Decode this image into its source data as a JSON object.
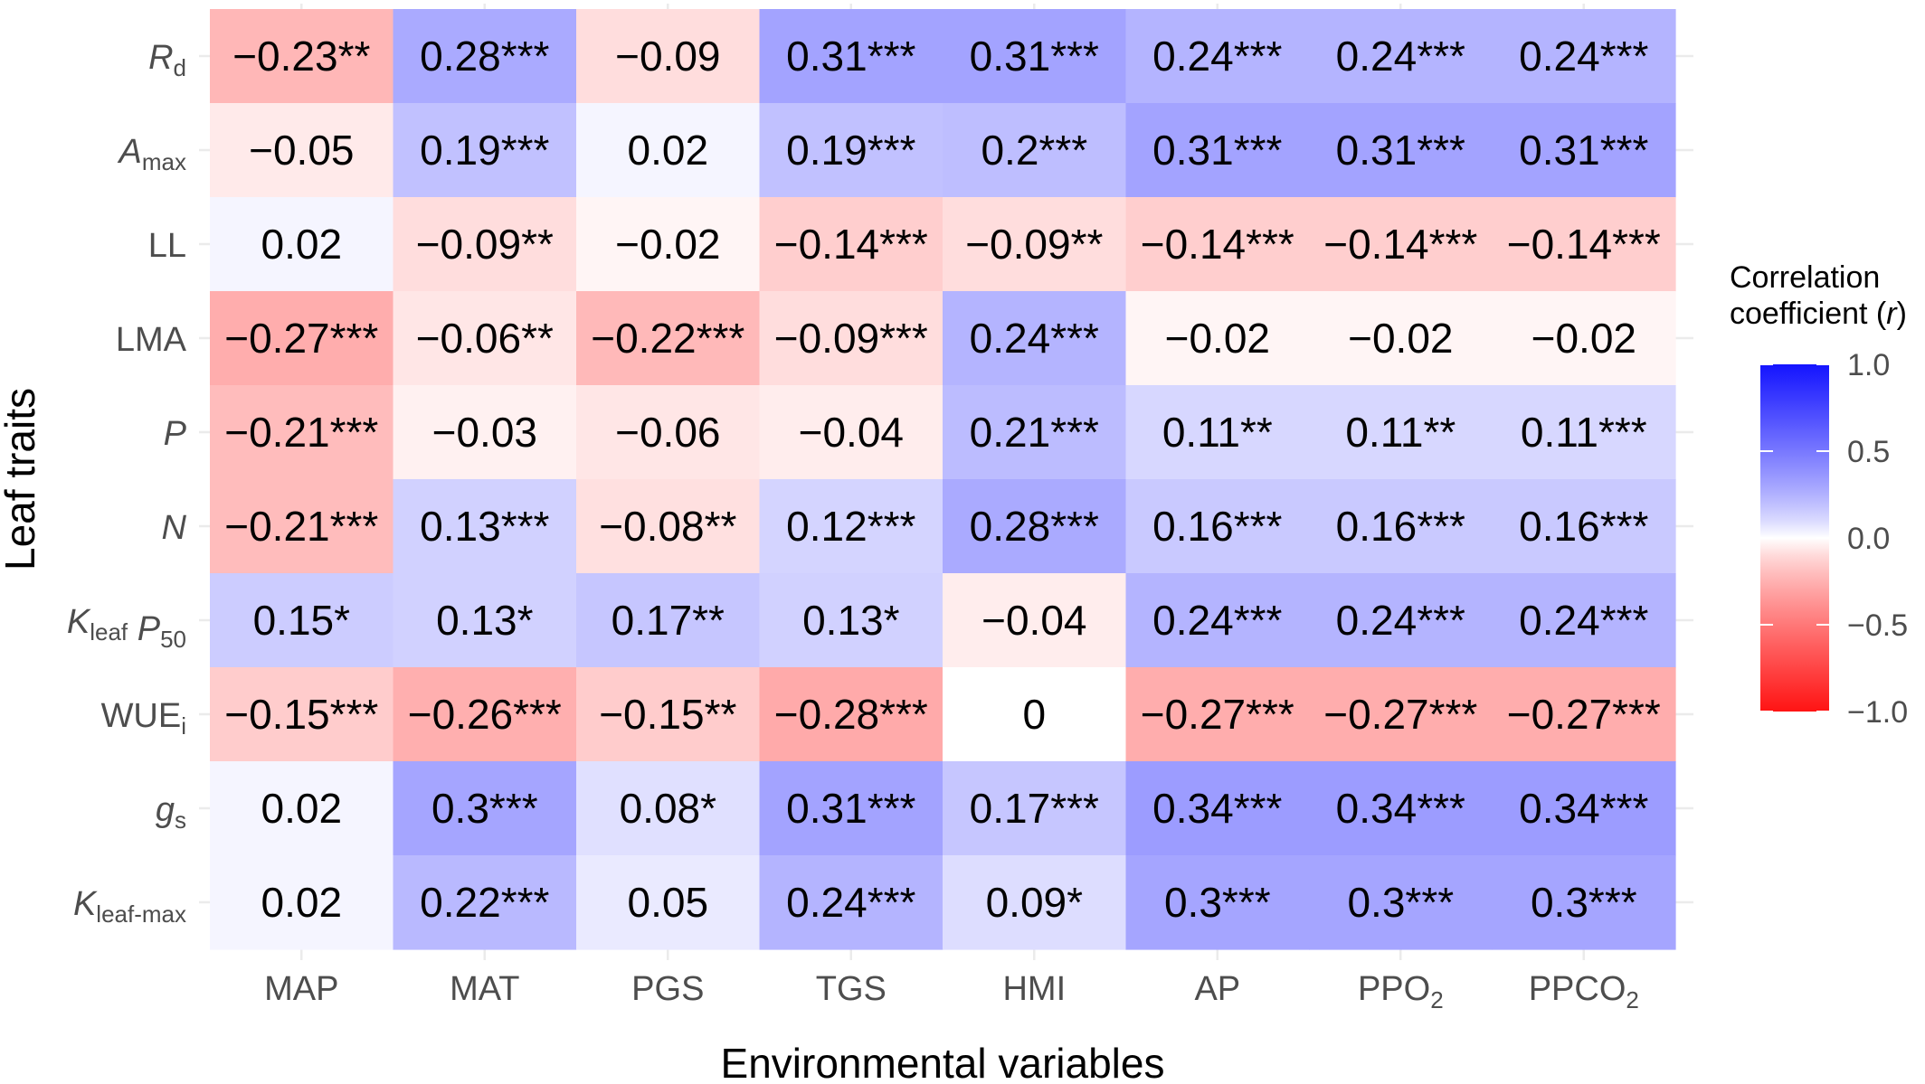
{
  "chart_data": {
    "type": "heatmap",
    "xlabel": "Environmental variables",
    "ylabel": "Leaf traits",
    "columns": [
      {
        "label": "MAP",
        "sub": ""
      },
      {
        "label": "MAT",
        "sub": ""
      },
      {
        "label": "PGS",
        "sub": ""
      },
      {
        "label": "TGS",
        "sub": ""
      },
      {
        "label": "HMI",
        "sub": ""
      },
      {
        "label": "AP",
        "sub": ""
      },
      {
        "label": "PPO",
        "sub": "2"
      },
      {
        "label": "PPCO",
        "sub": "2"
      }
    ],
    "rows": [
      {
        "parts": [
          {
            "t": "R",
            "i": true
          },
          {
            "t": "d",
            "s": true
          }
        ]
      },
      {
        "parts": [
          {
            "t": "A",
            "i": true
          },
          {
            "t": "max",
            "s": true
          }
        ]
      },
      {
        "parts": [
          {
            "t": "LL"
          }
        ]
      },
      {
        "parts": [
          {
            "t": "LMA"
          }
        ]
      },
      {
        "parts": [
          {
            "t": "P",
            "i": true
          }
        ]
      },
      {
        "parts": [
          {
            "t": "N",
            "i": true
          }
        ]
      },
      {
        "parts": [
          {
            "t": "K",
            "i": true
          },
          {
            "t": "leaf",
            "s": true
          },
          {
            "t": " "
          },
          {
            "t": "P",
            "i": true
          },
          {
            "t": "50",
            "s": true
          }
        ]
      },
      {
        "parts": [
          {
            "t": "WUE"
          },
          {
            "t": "i",
            "s": true
          }
        ]
      },
      {
        "parts": [
          {
            "t": "g",
            "i": true
          },
          {
            "t": "s",
            "s": true
          }
        ]
      },
      {
        "parts": [
          {
            "t": "K",
            "i": true
          },
          {
            "t": "leaf-max",
            "s": true
          }
        ]
      }
    ],
    "values": [
      [
        -0.23,
        0.28,
        -0.09,
        0.31,
        0.31,
        0.24,
        0.24,
        0.24
      ],
      [
        -0.05,
        0.19,
        0.02,
        0.19,
        0.2,
        0.31,
        0.31,
        0.31
      ],
      [
        0.02,
        -0.09,
        -0.02,
        -0.14,
        -0.09,
        -0.14,
        -0.14,
        -0.14
      ],
      [
        -0.27,
        -0.06,
        -0.22,
        -0.09,
        0.24,
        -0.02,
        -0.02,
        -0.02
      ],
      [
        -0.21,
        -0.03,
        -0.06,
        -0.04,
        0.21,
        0.11,
        0.11,
        0.11
      ],
      [
        -0.21,
        0.13,
        -0.08,
        0.12,
        0.28,
        0.16,
        0.16,
        0.16
      ],
      [
        0.15,
        0.13,
        0.17,
        0.13,
        -0.04,
        0.24,
        0.24,
        0.24
      ],
      [
        -0.15,
        -0.26,
        -0.15,
        -0.28,
        0,
        -0.27,
        -0.27,
        -0.27
      ],
      [
        0.02,
        0.3,
        0.08,
        0.31,
        0.17,
        0.34,
        0.34,
        0.34
      ],
      [
        0.02,
        0.22,
        0.05,
        0.24,
        0.09,
        0.3,
        0.3,
        0.3
      ]
    ],
    "cell_labels": [
      [
        "−0.23**",
        "0.28***",
        "−0.09",
        "0.31***",
        "0.31***",
        "0.24***",
        "0.24***",
        "0.24***"
      ],
      [
        "−0.05",
        "0.19***",
        "0.02",
        "0.19***",
        "0.2***",
        "0.31***",
        "0.31***",
        "0.31***"
      ],
      [
        "0.02",
        "−0.09**",
        "−0.02",
        "−0.14***",
        "−0.09**",
        "−0.14***",
        "−0.14***",
        "−0.14***"
      ],
      [
        "−0.27***",
        "−0.06**",
        "−0.22***",
        "−0.09***",
        "0.24***",
        "−0.02",
        "−0.02",
        "−0.02"
      ],
      [
        "−0.21***",
        "−0.03",
        "−0.06",
        "−0.04",
        "0.21***",
        "0.11**",
        "0.11**",
        "0.11***"
      ],
      [
        "−0.21***",
        "0.13***",
        "−0.08**",
        "0.12***",
        "0.28***",
        "0.16***",
        "0.16***",
        "0.16***"
      ],
      [
        "0.15*",
        "0.13*",
        "0.17**",
        "0.13*",
        "−0.04",
        "0.24***",
        "0.24***",
        "0.24***"
      ],
      [
        "−0.15***",
        "−0.26***",
        "−0.15**",
        "−0.28***",
        "0",
        "−0.27***",
        "−0.27***",
        "−0.27***"
      ],
      [
        "0.02",
        "0.3***",
        "0.08*",
        "0.31***",
        "0.17***",
        "0.34***",
        "0.34***",
        "0.34***"
      ],
      [
        "0.02",
        "0.22***",
        "0.05",
        "0.24***",
        "0.09*",
        "0.3***",
        "0.3***",
        "0.3***"
      ]
    ],
    "legend": {
      "title_line1": "Correlation",
      "title_line2_prefix": "coefficient (",
      "title_line2_var": "r",
      "title_line2_suffix": ")",
      "ticks": [
        {
          "value": 1.0,
          "label": "1.0"
        },
        {
          "value": 0.5,
          "label": "0.5"
        },
        {
          "value": 0.0,
          "label": "0.0"
        },
        {
          "value": -0.5,
          "label": "−0.5"
        },
        {
          "value": -1.0,
          "label": "−1.0"
        }
      ],
      "range": [
        -1,
        1
      ],
      "placement": "right"
    },
    "colors": {
      "low": "#ff0000",
      "mid": "#ffffff",
      "high": "#0000ff"
    },
    "grid": true
  }
}
